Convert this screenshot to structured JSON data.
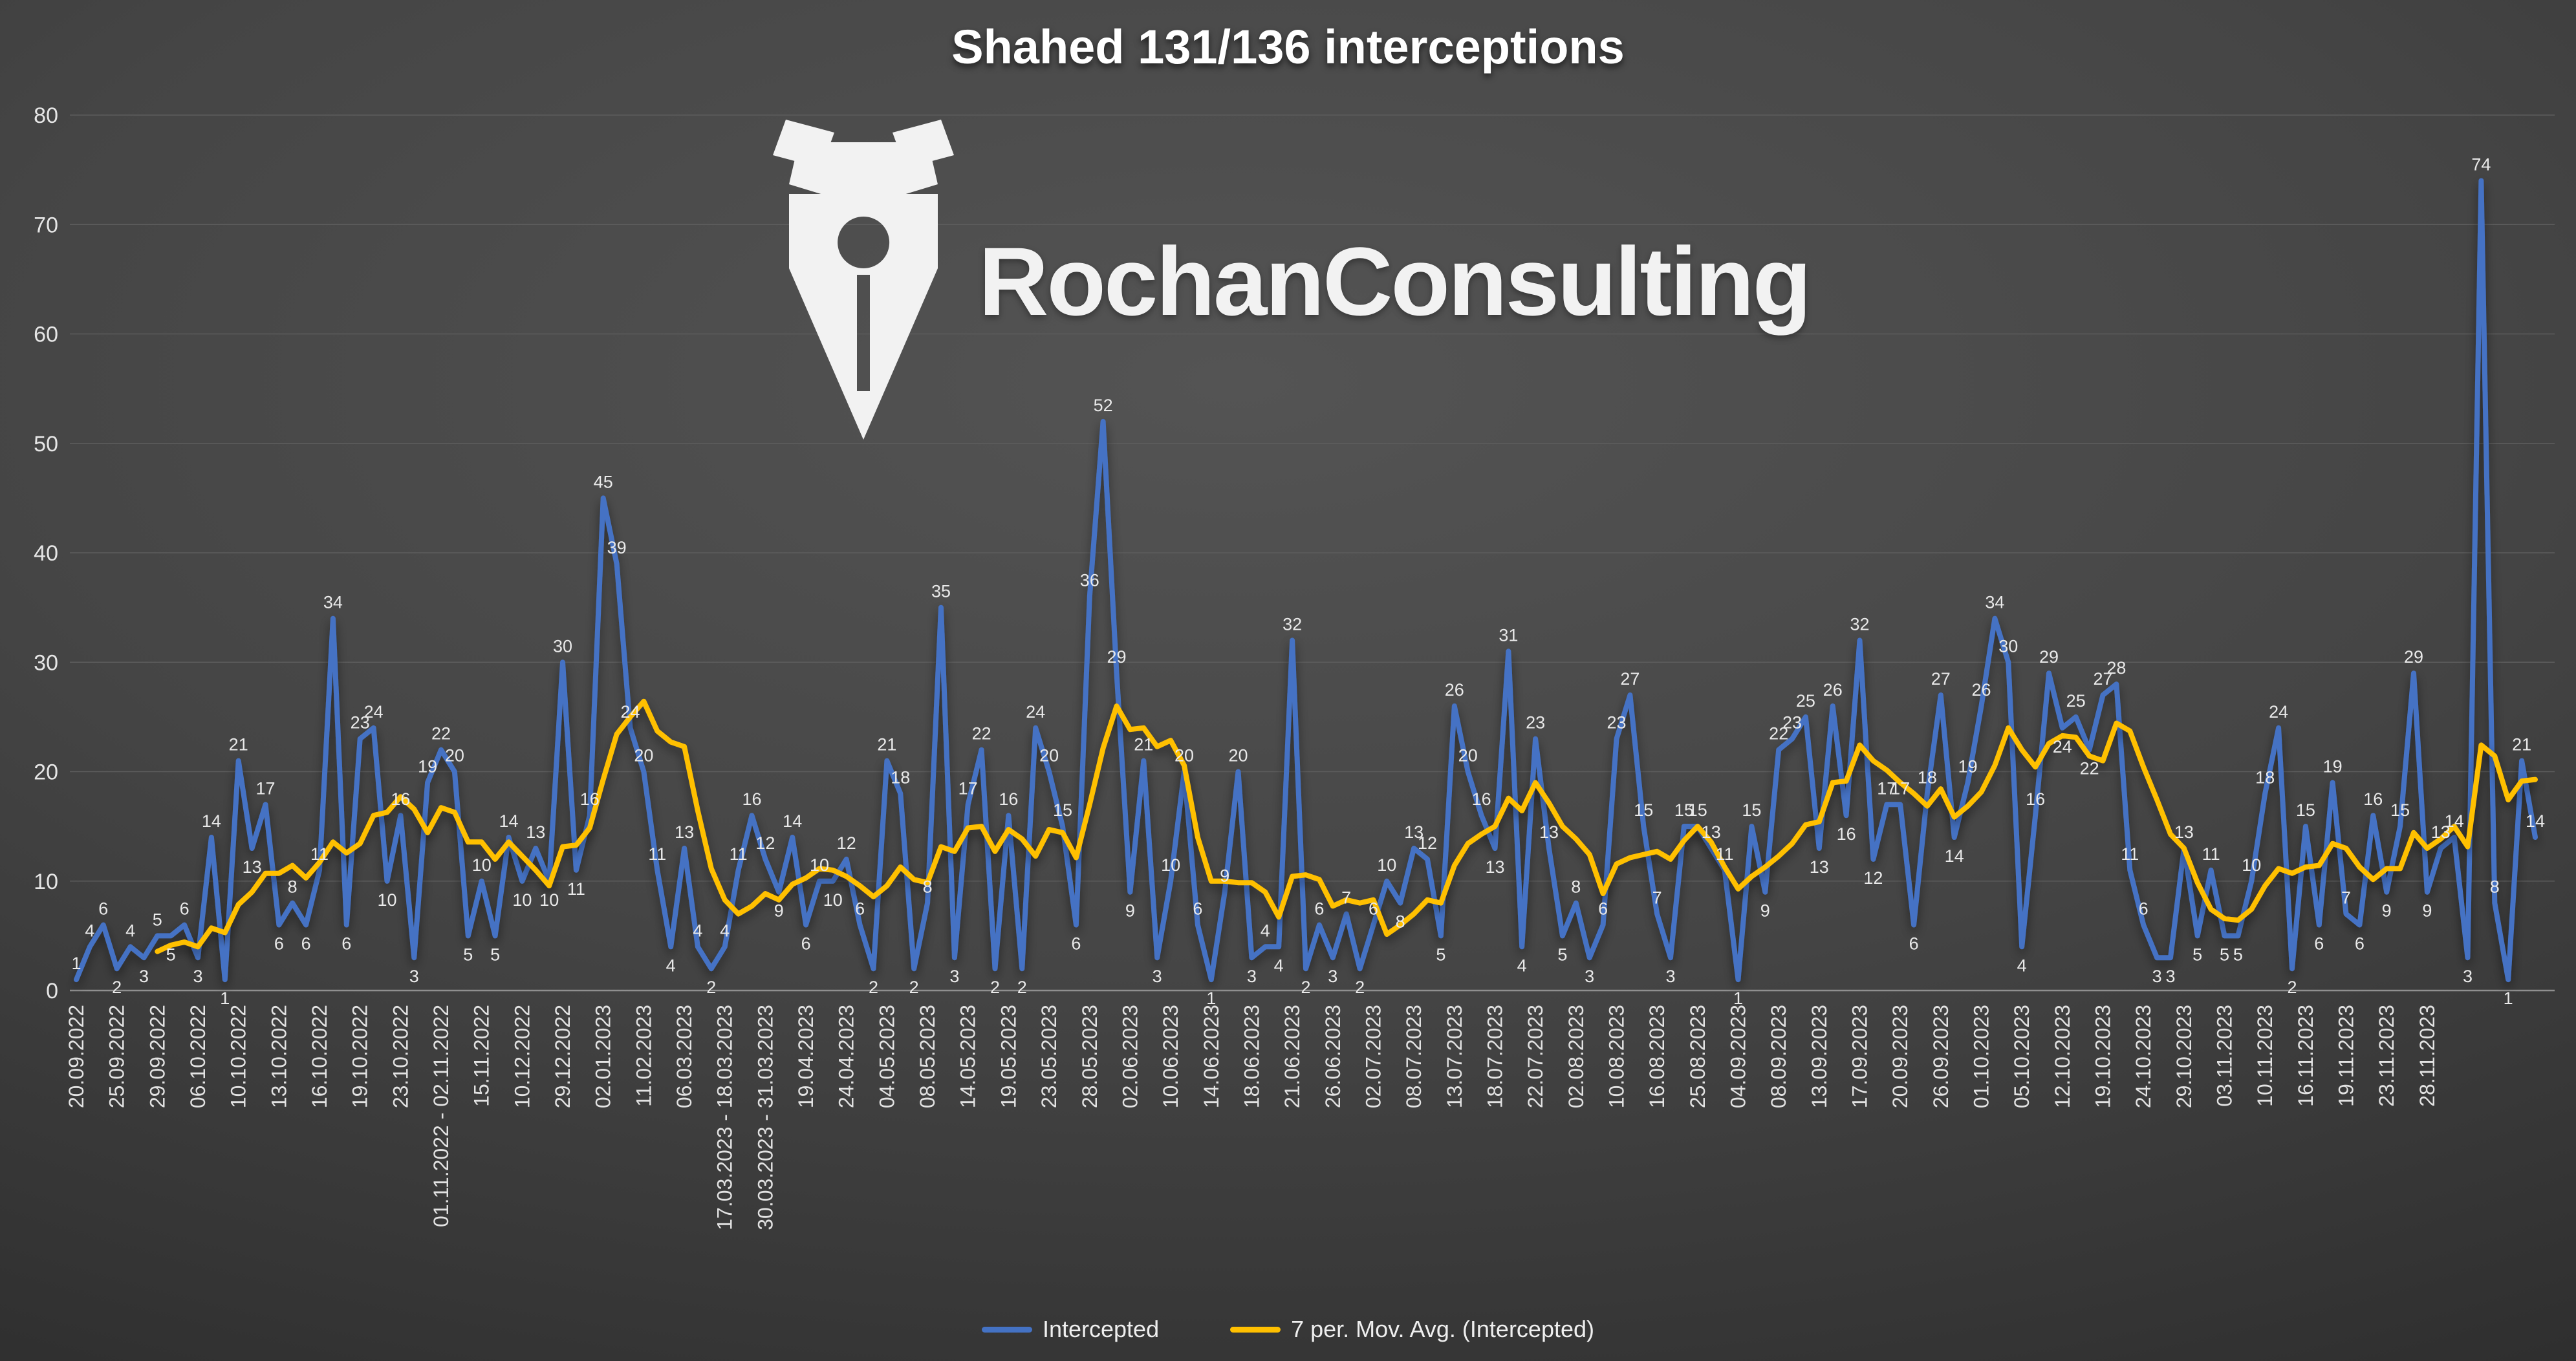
{
  "watermark": {
    "text": "RochanConsulting"
  },
  "chart_data": {
    "type": "line",
    "title": "Shahed 131/136 interceptions",
    "xlabel": "",
    "ylabel": "",
    "ylim": [
      0,
      80
    ],
    "y_tick_step": 10,
    "grid": true,
    "legend_position": "bottom",
    "colors": {
      "intercepted": "#4472c4",
      "moving_average": "#ffc000",
      "text": "#e8e8e8",
      "background_center": "#545454",
      "background_edge": "#1e1e1e"
    },
    "x_tick_every": 3,
    "x_tick_labels": [
      "20.09.2022",
      "25.09.2022",
      "29.09.2022",
      "06.10.2022",
      "10.10.2022",
      "13.10.2022",
      "16.10.2022",
      "19.10.2022",
      "23.10.2022",
      "01.11.2022 - 02.11.2022",
      "15.11.2022",
      "10.12.2022",
      "29.12.2022",
      "02.01.2023",
      "11.02.2023",
      "06.03.2023",
      "17.03.2023 - 18.03.2023",
      "30.03.2023 - 31.03.2023",
      "19.04.2023",
      "24.04.2023",
      "04.05.2023",
      "08.05.2023",
      "14.05.2023",
      "19.05.2023",
      "23.05.2023",
      "28.05.2023",
      "02.06.2023",
      "10.06.2023",
      "14.06.2023",
      "18.06.2023",
      "21.06.2023",
      "26.06.2023",
      "02.07.2023",
      "08.07.2023",
      "13.07.2023",
      "18.07.2023",
      "22.07.2023",
      "02.08.2023",
      "10.08.2023",
      "16.08.2023",
      "25.08.2023",
      "04.09.2023",
      "08.09.2023",
      "13.09.2023",
      "17.09.2023",
      "20.09.2023",
      "26.09.2023",
      "01.10.2023",
      "05.10.2023",
      "12.10.2023",
      "19.10.2023",
      "24.10.2023",
      "29.10.2023",
      "03.11.2023",
      "10.11.2023",
      "16.11.2023",
      "19.11.2023",
      "23.11.2023",
      "28.11.2023"
    ],
    "series": [
      {
        "name": "Intercepted",
        "values": [
          1,
          4,
          6,
          2,
          4,
          3,
          5,
          5,
          6,
          3,
          14,
          1,
          21,
          13,
          17,
          6,
          8,
          6,
          11,
          34,
          6,
          23,
          24,
          10,
          16,
          3,
          19,
          22,
          20,
          5,
          10,
          5,
          14,
          10,
          13,
          10,
          30,
          11,
          16,
          45,
          39,
          24,
          20,
          11,
          4,
          13,
          4,
          2,
          4,
          11,
          16,
          12,
          9,
          14,
          6,
          10,
          10,
          12,
          6,
          2,
          21,
          18,
          2,
          8,
          35,
          3,
          17,
          22,
          2,
          16,
          2,
          24,
          20,
          15,
          6,
          36,
          52,
          29,
          9,
          21,
          3,
          10,
          20,
          6,
          1,
          9,
          20,
          3,
          4,
          4,
          32,
          2,
          6,
          3,
          7,
          2,
          6,
          10,
          8,
          13,
          12,
          5,
          26,
          20,
          16,
          13,
          31,
          4,
          23,
          13,
          5,
          8,
          3,
          6,
          23,
          27,
          15,
          7,
          3,
          15,
          15,
          13,
          11,
          1,
          15,
          9,
          22,
          23,
          25,
          13,
          26,
          16,
          32,
          12,
          17,
          17,
          6,
          18,
          27,
          14,
          19,
          26,
          34,
          30,
          4,
          16,
          29,
          24,
          25,
          22,
          27,
          28,
          11,
          6,
          3,
          3,
          13,
          5,
          11,
          5,
          5,
          10,
          18,
          24,
          2,
          15,
          6,
          19,
          7,
          6,
          16,
          9,
          15,
          29,
          9,
          13,
          14,
          3,
          74,
          8,
          1,
          21,
          14
        ]
      },
      {
        "name": "7 per. Mov. Avg. (Intercepted)",
        "derived": "trailing moving average of Intercepted",
        "window": 7
      }
    ]
  }
}
